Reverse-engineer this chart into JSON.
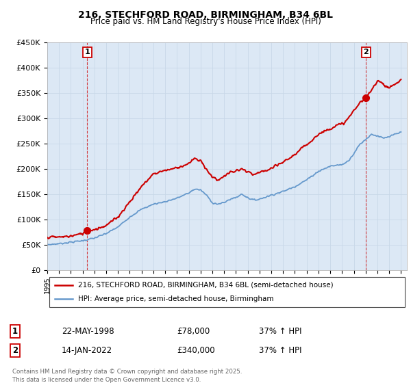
{
  "title": "216, STECHFORD ROAD, BIRMINGHAM, B34 6BL",
  "subtitle": "Price paid vs. HM Land Registry's House Price Index (HPI)",
  "ylabel_ticks": [
    "£0",
    "£50K",
    "£100K",
    "£150K",
    "£200K",
    "£250K",
    "£300K",
    "£350K",
    "£400K",
    "£450K"
  ],
  "ytick_values": [
    0,
    50000,
    100000,
    150000,
    200000,
    250000,
    300000,
    350000,
    400000,
    450000
  ],
  "ylim": [
    0,
    450000
  ],
  "xlim_start": 1995.0,
  "xlim_end": 2025.5,
  "grid_color": "#c8d8e8",
  "bg_color": "#ffffff",
  "plot_bg_color": "#dce8f5",
  "red_color": "#cc0000",
  "blue_color": "#6699cc",
  "sale1_x": 1998.39,
  "sale1_y": 78000,
  "sale2_x": 2022.04,
  "sale2_y": 340000,
  "legend_label_red": "216, STECHFORD ROAD, BIRMINGHAM, B34 6BL (semi-detached house)",
  "legend_label_blue": "HPI: Average price, semi-detached house, Birmingham",
  "table_row1": [
    "1",
    "22-MAY-1998",
    "£78,000",
    "37% ↑ HPI"
  ],
  "table_row2": [
    "2",
    "14-JAN-2022",
    "£340,000",
    "37% ↑ HPI"
  ],
  "footer": "Contains HM Land Registry data © Crown copyright and database right 2025.\nThis data is licensed under the Open Government Licence v3.0.",
  "xtick_years": [
    1995,
    1996,
    1997,
    1998,
    1999,
    2000,
    2001,
    2002,
    2003,
    2004,
    2005,
    2006,
    2007,
    2008,
    2009,
    2010,
    2011,
    2012,
    2013,
    2014,
    2015,
    2016,
    2017,
    2018,
    2019,
    2020,
    2021,
    2022,
    2023,
    2024,
    2025
  ]
}
